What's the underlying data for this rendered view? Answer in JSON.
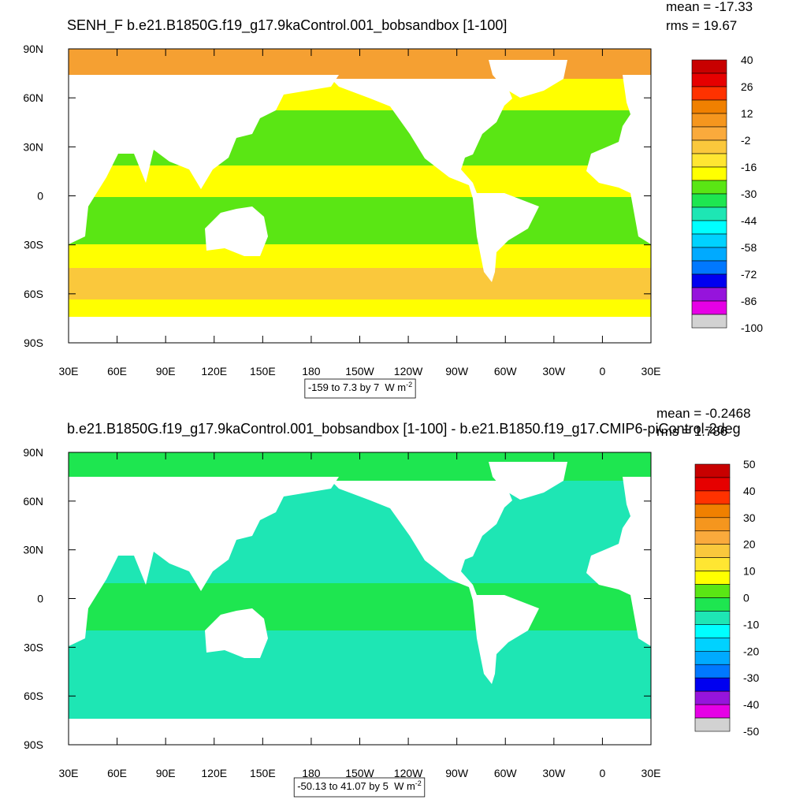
{
  "colorbar_colors": [
    "#c80000",
    "#e60000",
    "#ff3200",
    "#f08000",
    "#f5961e",
    "#faaa3c",
    "#fac83c",
    "#ffe632",
    "#ffff00",
    "#5ae614",
    "#1ee650",
    "#1ee6b4",
    "#00ffff",
    "#00d2ff",
    "#00aaff",
    "#0078ff",
    "#0000f0",
    "#9614dc",
    "#e600e6",
    "#d2d2d2"
  ],
  "lat_labels": [
    "90N",
    "60N",
    "30N",
    "0",
    "30S",
    "60S",
    "90S"
  ],
  "lon_labels": [
    "30E",
    "60E",
    "90E",
    "120E",
    "150E",
    "180",
    "150W",
    "120W",
    "90W",
    "60W",
    "30W",
    "0",
    "30E"
  ],
  "panels": [
    {
      "title": "SENH_F b.e21.B1850G.f19_g17.9kaControl.001_bobsandbox [1-100]",
      "mean": "mean = -17.33",
      "rms": "rms = 19.67",
      "colorbar_labels": [
        "40",
        "26",
        "12",
        "-2",
        "-16",
        "-30",
        "-44",
        "-58",
        "-72",
        "-86",
        "-100"
      ],
      "range_note": "-159 to 7.3 by 7  W m",
      "units_exponent": "-2"
    },
    {
      "title": "b.e21.B1850G.f19_g17.9kaControl.001_bobsandbox [1-100] - b.e21.B1850.f19_g17.CMIP6-piControl-2deg",
      "mean": "mean = -0.2468",
      "rms": "rms = 1.786",
      "colorbar_labels": [
        "50",
        "40",
        "30",
        "20",
        "10",
        "0",
        "-10",
        "-20",
        "-30",
        "-40",
        "-50"
      ],
      "range_note": "-50.13 to 41.07 by 5  W m",
      "units_exponent": "-2"
    }
  ]
}
